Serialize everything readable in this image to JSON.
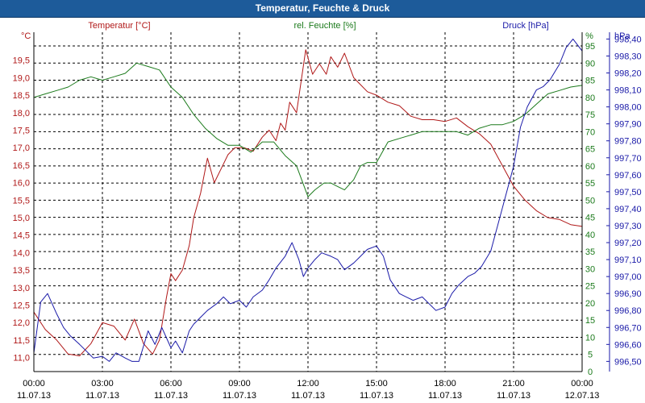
{
  "window": {
    "title": "Temperatur, Feuchte & Druck"
  },
  "colors": {
    "temp": "#b01818",
    "humidity": "#1b7a1b",
    "pressure": "#1a1aa8",
    "grid": "#000000",
    "axisText": "#000000"
  },
  "chart_data": {
    "type": "line",
    "title": "Temperatur, Feuchte & Druck",
    "grid": true,
    "x": {
      "range_hours": [
        0,
        24
      ],
      "ticks": [
        {
          "time": "00:00",
          "date": "11.07.13"
        },
        {
          "time": "03:00",
          "date": "11.07.13"
        },
        {
          "time": "06:00",
          "date": "11.07.13"
        },
        {
          "time": "09:00",
          "date": "11.07.13"
        },
        {
          "time": "12:00",
          "date": "11.07.13"
        },
        {
          "time": "15:00",
          "date": "11.07.13"
        },
        {
          "time": "18:00",
          "date": "11.07.13"
        },
        {
          "time": "21:00",
          "date": "11.07.13"
        },
        {
          "time": "00:00",
          "date": "12.07.13"
        }
      ]
    },
    "axes": {
      "temp": {
        "label": "Temperatur [°C]",
        "unit": "°C",
        "range": [
          10.6,
          20.3
        ],
        "ticks": [
          "11,0",
          "11,5",
          "12,0",
          "12,5",
          "13,0",
          "13,5",
          "14,0",
          "14,5",
          "15,0",
          "15,5",
          "16,0",
          "16,5",
          "17,0",
          "17,5",
          "18,0",
          "18,5",
          "19,0",
          "19,5"
        ]
      },
      "humidity": {
        "label": "rel. Feuchte [%]",
        "unit": "%",
        "range": [
          0,
          99
        ],
        "ticks": [
          "0",
          "5",
          "10",
          "15",
          "20",
          "25",
          "30",
          "35",
          "40",
          "45",
          "50",
          "55",
          "60",
          "65",
          "70",
          "75",
          "80",
          "85",
          "90",
          "95"
        ]
      },
      "pressure": {
        "label": "Druck [hPa]",
        "unit": "hPa",
        "range": [
          996.44,
          998.44
        ],
        "ticks": [
          "996,50",
          "996,60",
          "996,70",
          "996,80",
          "996,90",
          "997,00",
          "997,10",
          "997,20",
          "997,30",
          "997,40",
          "997,50",
          "997,60",
          "997,70",
          "997,80",
          "997,90",
          "998,00",
          "998,10",
          "998,20",
          "998,30",
          "998,40"
        ]
      }
    },
    "series": [
      {
        "name": "Temperatur [°C]",
        "axis": "temp",
        "color": "#b01818",
        "x": [
          0,
          0.5,
          1,
          1.5,
          2,
          2.5,
          3,
          3.5,
          4,
          4.4,
          4.8,
          5.2,
          5.5,
          5.8,
          6,
          6.2,
          6.5,
          6.8,
          7,
          7.3,
          7.6,
          7.9,
          8.2,
          8.5,
          8.8,
          9.2,
          9.6,
          10,
          10.3,
          10.6,
          10.8,
          11,
          11.2,
          11.5,
          11.7,
          11.9,
          12.2,
          12.5,
          12.8,
          13,
          13.3,
          13.6,
          14,
          14.3,
          14.6,
          15,
          15.5,
          16,
          16.5,
          17,
          17.5,
          18,
          18.5,
          19,
          19.5,
          20,
          20.5,
          21,
          21.5,
          22,
          22.5,
          23,
          23.5,
          24
        ],
        "values": [
          12.3,
          11.8,
          11.5,
          11.1,
          11.05,
          11.4,
          12.0,
          11.9,
          11.5,
          12.1,
          11.4,
          11.1,
          11.5,
          12.7,
          13.4,
          13.2,
          13.5,
          14.2,
          15.0,
          15.7,
          16.7,
          16.0,
          16.4,
          16.8,
          17.0,
          17.0,
          16.9,
          17.3,
          17.5,
          17.2,
          17.7,
          17.5,
          18.3,
          18.0,
          18.9,
          19.8,
          19.1,
          19.4,
          19.1,
          19.6,
          19.3,
          19.7,
          19.0,
          18.8,
          18.6,
          18.5,
          18.3,
          18.2,
          17.9,
          17.8,
          17.8,
          17.75,
          17.85,
          17.6,
          17.4,
          17.1,
          16.5,
          15.9,
          15.5,
          15.2,
          15.0,
          14.95,
          14.8,
          14.75
        ]
      },
      {
        "name": "rel. Feuchte [%]",
        "axis": "humidity",
        "color": "#1b7a1b",
        "x": [
          0,
          0.5,
          1,
          1.5,
          2,
          2.5,
          3,
          3.5,
          4,
          4.5,
          5,
          5.5,
          6,
          6.5,
          7,
          7.5,
          8,
          8.5,
          9,
          9.5,
          10,
          10.5,
          11,
          11.5,
          12,
          12.3,
          12.7,
          13,
          13.3,
          13.6,
          14,
          14.3,
          14.6,
          15,
          15.5,
          16,
          16.5,
          17,
          17.5,
          18,
          18.5,
          19,
          19.5,
          20,
          20.5,
          21,
          21.5,
          22,
          22.5,
          23,
          23.5,
          24
        ],
        "values": [
          80,
          81,
          82,
          83,
          85,
          86,
          85,
          86,
          87,
          90,
          89,
          88,
          83,
          80,
          75,
          71,
          68,
          66,
          66,
          64,
          67,
          67,
          63,
          60,
          51,
          53,
          55,
          55,
          54,
          53,
          56,
          60,
          61,
          61,
          67,
          68,
          69,
          70,
          70,
          70,
          70,
          69,
          71,
          72,
          72,
          73,
          75,
          78,
          81,
          82,
          83,
          83.5
        ]
      },
      {
        "name": "Druck [hPa]",
        "axis": "pressure",
        "color": "#1a1aa8",
        "x": [
          0,
          0.3,
          0.6,
          1,
          1.3,
          1.6,
          2,
          2.3,
          2.6,
          3,
          3.3,
          3.6,
          4,
          4.3,
          4.6,
          5,
          5.3,
          5.6,
          6,
          6.2,
          6.5,
          6.8,
          7,
          7.3,
          7.6,
          8,
          8.3,
          8.6,
          9,
          9.3,
          9.6,
          10,
          10.3,
          10.6,
          11,
          11.3,
          11.6,
          11.8,
          12,
          12.3,
          12.6,
          13,
          13.3,
          13.6,
          14,
          14.3,
          14.6,
          15,
          15.3,
          15.6,
          16,
          16.3,
          16.6,
          17,
          17.3,
          17.6,
          18,
          18.3,
          18.6,
          19,
          19.3,
          19.6,
          20,
          20.3,
          20.6,
          21,
          21.3,
          21.6,
          22,
          22.3,
          22.6,
          23,
          23.3,
          23.6,
          24
        ],
        "values": [
          996.55,
          996.85,
          996.9,
          996.78,
          996.7,
          996.65,
          996.6,
          996.56,
          996.52,
          996.53,
          996.5,
          996.55,
          996.52,
          996.5,
          996.5,
          996.68,
          996.6,
          996.7,
          996.58,
          996.62,
          996.55,
          996.68,
          996.72,
          996.76,
          996.8,
          996.84,
          996.88,
          996.84,
          996.86,
          996.82,
          996.88,
          996.92,
          996.98,
          997.05,
          997.12,
          997.2,
          997.1,
          997.0,
          997.05,
          997.1,
          997.14,
          997.12,
          997.1,
          997.04,
          997.08,
          997.12,
          997.16,
          997.18,
          997.12,
          996.98,
          996.9,
          996.88,
          996.86,
          996.88,
          996.84,
          996.8,
          996.82,
          996.9,
          996.95,
          997.0,
          997.02,
          997.06,
          997.15,
          997.3,
          997.45,
          997.65,
          997.88,
          998.0,
          998.1,
          998.12,
          998.16,
          998.25,
          998.35,
          998.4,
          998.33
        ]
      }
    ]
  }
}
